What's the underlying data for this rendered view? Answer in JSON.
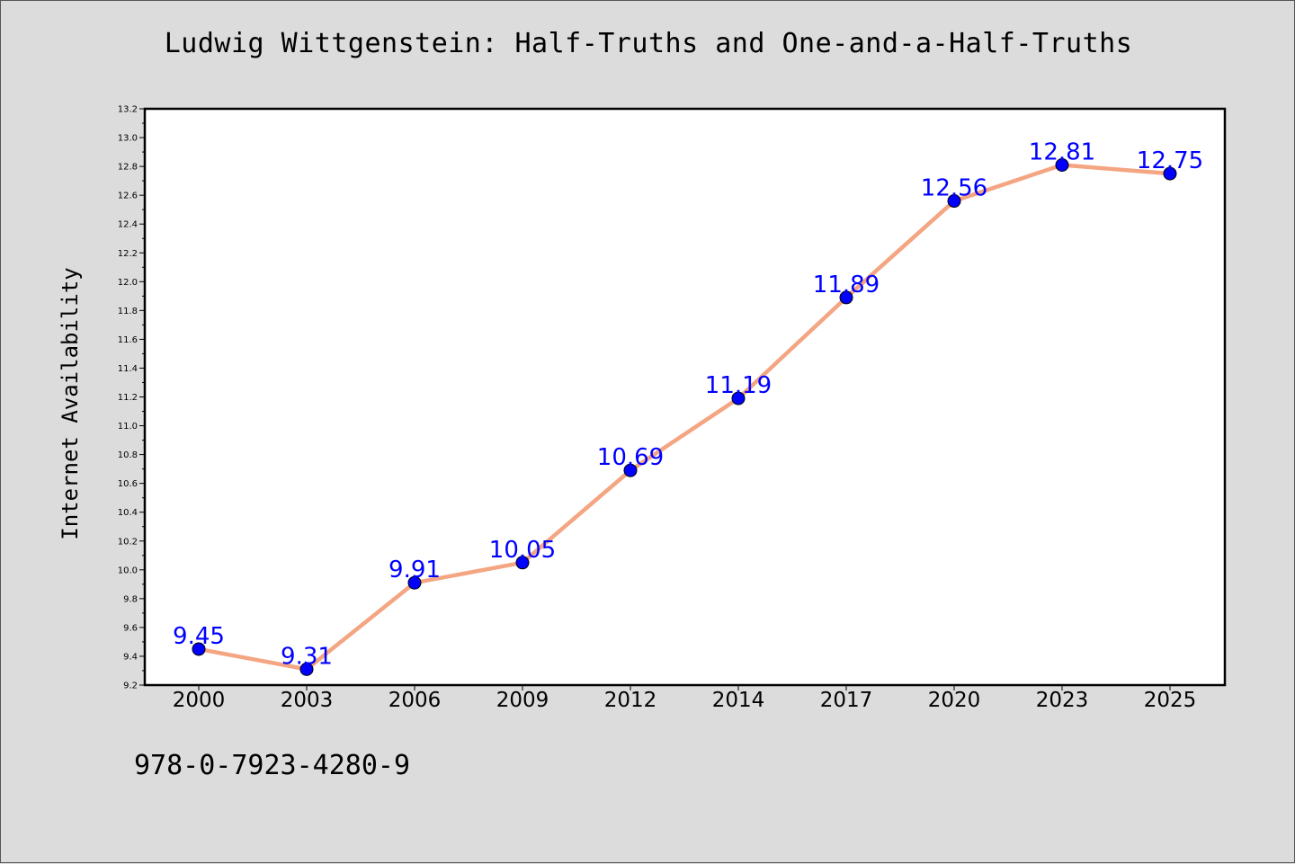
{
  "chart_data": {
    "type": "line",
    "title": "Ludwig Wittgenstein: Half-Truths and One-and-a-Half-Truths",
    "xlabel": "",
    "ylabel": "Internet Availability",
    "categories": [
      "2000",
      "2003",
      "2006",
      "2009",
      "2012",
      "2014",
      "2017",
      "2020",
      "2023",
      "2025"
    ],
    "series": [
      {
        "values": [
          9.45,
          9.31,
          9.91,
          10.05,
          10.69,
          11.19,
          11.89,
          12.56,
          12.81,
          12.75
        ],
        "data_labels": [
          "9.45",
          "9.31",
          "9.91",
          "10.05",
          "10.69",
          "11.19",
          "11.89",
          "12.56",
          "12.81",
          "12.75"
        ],
        "line_color": "#f4a582",
        "marker_color": "#0000ff"
      }
    ],
    "ylim": [
      9.2,
      13.2
    ],
    "yticks": [
      "9.2",
      "9.4",
      "9.6",
      "9.8",
      "10.0",
      "10.2",
      "10.4",
      "10.6",
      "10.8",
      "11.0",
      "11.2",
      "11.4",
      "11.6",
      "11.8",
      "12.0",
      "12.2",
      "12.4",
      "12.6",
      "12.8",
      "13.0",
      "13.2"
    ],
    "grid": false,
    "legend": "none",
    "label_color": "#0000ff",
    "background": "#dcdcdc",
    "plot_background": "#ffffff"
  },
  "footer": {
    "isbn": "978-0-7923-4280-9"
  }
}
